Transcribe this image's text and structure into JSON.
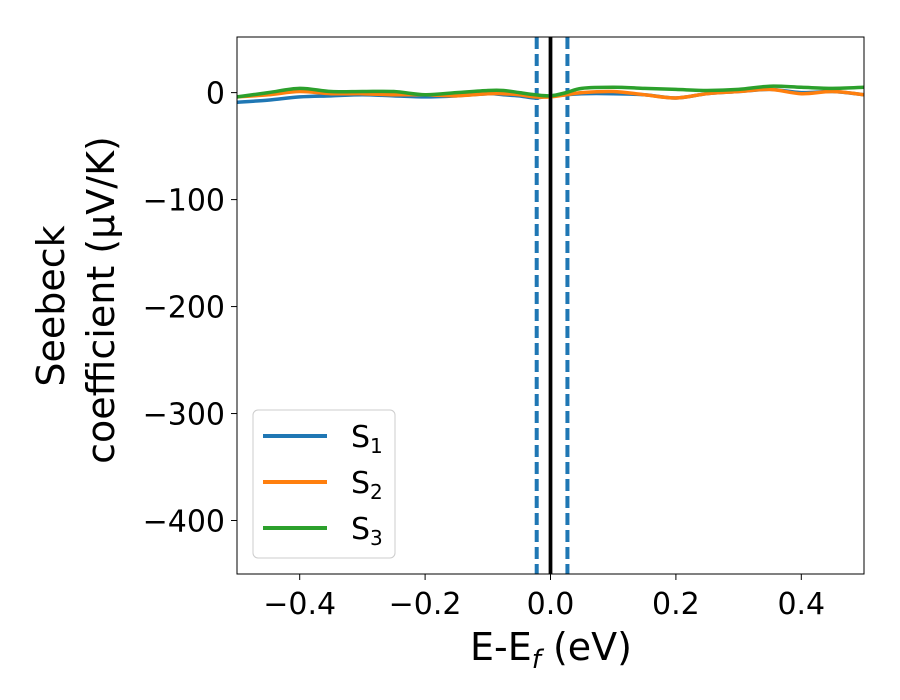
{
  "chart_data": {
    "type": "line",
    "xlabel_main": "E-E",
    "xlabel_sub": "f",
    "xlabel_unit": " (eV)",
    "ylabel_line1": "Seebeck",
    "ylabel_line2": "coefficient  (μV/K)",
    "xlim": [
      -0.5,
      0.5
    ],
    "ylim": [
      -450,
      52
    ],
    "xticks": [
      -0.4,
      -0.2,
      0.0,
      0.2,
      0.4
    ],
    "xtick_labels": [
      "−0.4",
      "−0.2",
      "0.0",
      "0.2",
      "0.4"
    ],
    "yticks": [
      0,
      -100,
      -200,
      -300,
      -400
    ],
    "ytick_labels": [
      "0",
      "−100",
      "−200",
      "−300",
      "−400"
    ],
    "grid": false,
    "legend_position": "lower-left",
    "vlines": [
      {
        "x": 0.0,
        "style": "solid",
        "color": "#000000"
      },
      {
        "x": -0.022,
        "style": "dashed",
        "color": "#1f77b4"
      },
      {
        "x": 0.027,
        "style": "dashed",
        "color": "#1f77b4"
      }
    ],
    "x": [
      -0.5,
      -0.45,
      -0.4,
      -0.35,
      -0.3,
      -0.25,
      -0.2,
      -0.15,
      -0.1,
      -0.075,
      -0.05,
      -0.025,
      0.0,
      0.025,
      0.05,
      0.1,
      0.15,
      0.2,
      0.25,
      0.3,
      0.35,
      0.4,
      0.45,
      0.5
    ],
    "series": [
      {
        "name": "S",
        "sub": "1",
        "color": "#1f77b4",
        "values": [
          -9,
          -7,
          -4,
          -3,
          -2,
          -3,
          -4,
          -3,
          -1,
          -2,
          -3,
          -5,
          -3,
          -2,
          -1,
          -1,
          -2,
          -5,
          -1,
          1,
          3,
          0,
          1,
          -2
        ]
      },
      {
        "name": "S",
        "sub": "2",
        "color": "#ff7f0e",
        "values": [
          -4,
          -2,
          1,
          -1,
          -1,
          -2,
          -2,
          -3,
          -1,
          -1,
          -2,
          -4,
          -4,
          -2,
          0,
          1,
          -2,
          -5,
          -1,
          1,
          3,
          -1,
          1,
          -2
        ]
      },
      {
        "name": "S",
        "sub": "3",
        "color": "#2ca02c",
        "values": [
          -4,
          0,
          4,
          1,
          1,
          1,
          -2,
          0,
          2,
          2,
          0,
          -2,
          -3,
          0,
          4,
          5,
          4,
          3,
          2,
          3,
          6,
          5,
          4,
          5
        ]
      }
    ]
  }
}
